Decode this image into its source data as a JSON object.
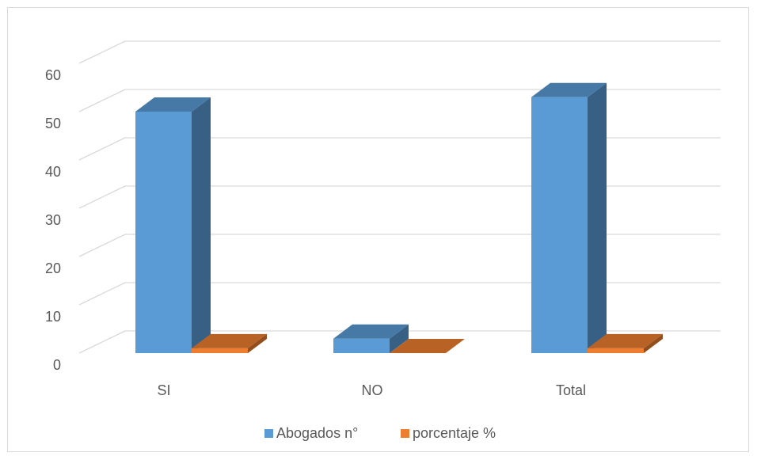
{
  "chart_data": {
    "type": "bar",
    "categories": [
      "SI",
      "NO",
      "Total"
    ],
    "series": [
      {
        "name": "Abogados n°",
        "values": [
          50,
          3,
          53
        ],
        "color": "#5b9bd5"
      },
      {
        "name": "porcentaje %",
        "values": [
          1,
          0,
          1
        ],
        "color": "#ed7d31"
      }
    ],
    "ylim": [
      0,
      60
    ],
    "yticks": [
      0,
      10,
      20,
      30,
      40,
      50,
      60
    ],
    "grid": true,
    "legend": "bottom"
  }
}
